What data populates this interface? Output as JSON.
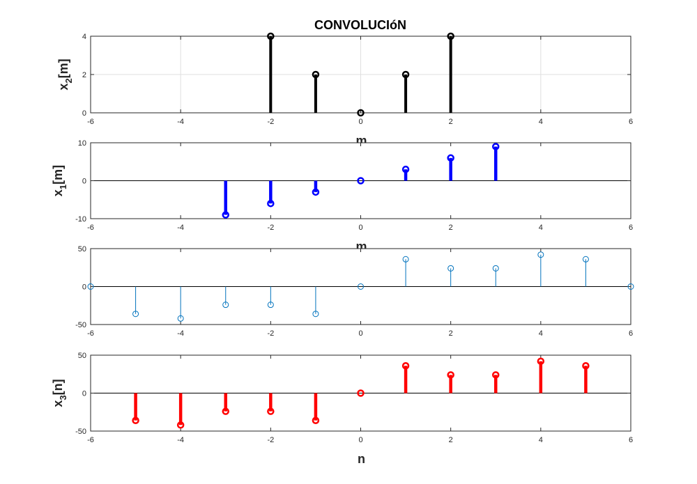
{
  "title": "CONVOLUCIóN",
  "chart_data": [
    {
      "type": "stem",
      "ylabel": "x_2[m]",
      "ylabel_main": "x",
      "ylabel_sub": "2",
      "ylabel_rest": "[m]",
      "xlabel": "m",
      "xlim": [
        -6,
        6
      ],
      "ylim": [
        0,
        4
      ],
      "xticks": [
        -6,
        -4,
        -2,
        0,
        2,
        4,
        6
      ],
      "yticks": [
        0,
        2,
        4
      ],
      "grid": true,
      "color": "#000000",
      "x": [
        -2,
        -1,
        0,
        1,
        2
      ],
      "y": [
        4,
        2,
        0,
        2,
        4
      ]
    },
    {
      "type": "stem",
      "ylabel": "x_1[m]",
      "ylabel_main": "x",
      "ylabel_sub": "1",
      "ylabel_rest": "[m]",
      "xlabel": "m",
      "xlim": [
        -6,
        6
      ],
      "ylim": [
        -10,
        10
      ],
      "xticks": [
        -6,
        -4,
        -2,
        0,
        2,
        4,
        6
      ],
      "yticks": [
        -10,
        0,
        10
      ],
      "grid": false,
      "color": "#0000ff",
      "x": [
        -3,
        -2,
        -1,
        0,
        1,
        2,
        3
      ],
      "y": [
        -9,
        -6,
        -3,
        0,
        3,
        6,
        9
      ]
    },
    {
      "type": "stem",
      "ylabel": "",
      "xlabel": "",
      "xlim": [
        -6,
        6
      ],
      "ylim": [
        -50,
        50
      ],
      "xticks": [
        -6,
        -4,
        -2,
        0,
        2,
        4,
        6
      ],
      "yticks": [
        -50,
        0,
        50
      ],
      "grid": false,
      "color": "#0072bd",
      "x": [
        -6,
        -5,
        -4,
        -3,
        -2,
        -1,
        0,
        1,
        2,
        3,
        4,
        5,
        6
      ],
      "y": [
        0,
        -36,
        -42,
        -24,
        -24,
        -36,
        0,
        36,
        24,
        24,
        42,
        36,
        0
      ]
    },
    {
      "type": "stem",
      "ylabel": "x_3[n]",
      "ylabel_main": "x",
      "ylabel_sub": "3",
      "ylabel_rest": "[n]",
      "xlabel": "n",
      "xlim": [
        -6,
        6
      ],
      "ylim": [
        -50,
        50
      ],
      "xticks": [
        -6,
        -4,
        -2,
        0,
        2,
        4,
        6
      ],
      "yticks": [
        -50,
        0,
        50
      ],
      "grid": false,
      "color": "#ff0000",
      "x": [
        -5,
        -4,
        -3,
        -2,
        -1,
        0,
        1,
        2,
        3,
        4,
        5
      ],
      "y": [
        -36,
        -42,
        -24,
        -24,
        -36,
        0,
        36,
        24,
        24,
        42,
        36
      ]
    }
  ]
}
